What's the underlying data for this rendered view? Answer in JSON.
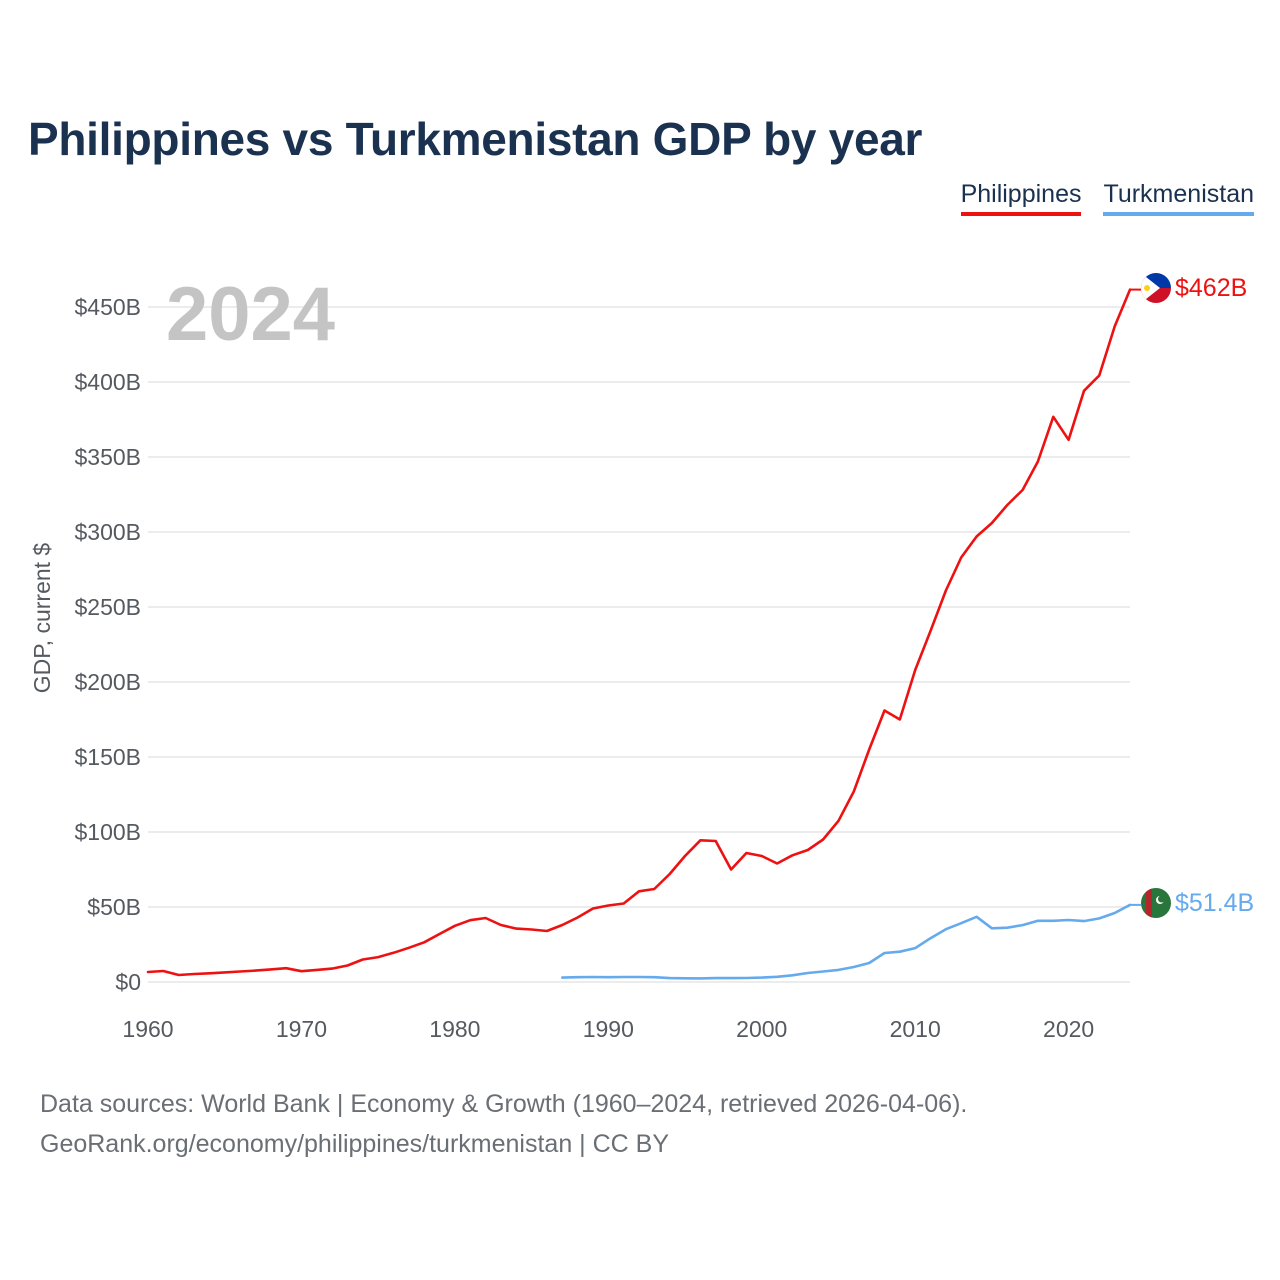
{
  "title": "Philippines vs Turkmenistan GDP by year",
  "legend": [
    {
      "name": "Philippines",
      "color": "#ee1111"
    },
    {
      "name": "Turkmenistan",
      "color": "#66aaee"
    }
  ],
  "current_year": "2024",
  "footer": {
    "line1": "Data sources: World Bank | Economy & Growth (1960–2024, retrieved 2026-04-06).",
    "line2": "GeoRank.org/economy/philippines/turkmenistan | CC BY"
  },
  "chart_data": {
    "type": "line",
    "title": "Philippines vs Turkmenistan GDP by year",
    "xlabel": "",
    "ylabel": "GDP, current $",
    "xlim": [
      1960,
      2024
    ],
    "ylim": [
      0,
      450
    ],
    "y_unit": "billions USD",
    "x_ticks": [
      1960,
      1970,
      1980,
      1990,
      2000,
      2010,
      2020
    ],
    "y_ticks": [
      {
        "value": 0,
        "label": "$0"
      },
      {
        "value": 50,
        "label": "$50B"
      },
      {
        "value": 100,
        "label": "$100B"
      },
      {
        "value": 150,
        "label": "$150B"
      },
      {
        "value": 200,
        "label": "$200B"
      },
      {
        "value": 250,
        "label": "$250B"
      },
      {
        "value": 300,
        "label": "$300B"
      },
      {
        "value": 350,
        "label": "$350B"
      },
      {
        "value": 400,
        "label": "$400B"
      },
      {
        "value": 450,
        "label": "$450B"
      }
    ],
    "grid": true,
    "legend_position": "top-right",
    "series": [
      {
        "name": "Philippines",
        "color": "#ee1111",
        "end_label": "$462B",
        "x": [
          1960,
          1961,
          1962,
          1963,
          1964,
          1965,
          1966,
          1967,
          1968,
          1969,
          1970,
          1971,
          1972,
          1973,
          1974,
          1975,
          1976,
          1977,
          1978,
          1979,
          1980,
          1981,
          1982,
          1983,
          1984,
          1985,
          1986,
          1987,
          1988,
          1989,
          1990,
          1991,
          1992,
          1993,
          1994,
          1995,
          1996,
          1997,
          1998,
          1999,
          2000,
          2001,
          2002,
          2003,
          2004,
          2005,
          2006,
          2007,
          2008,
          2009,
          2010,
          2011,
          2012,
          2013,
          2014,
          2015,
          2016,
          2017,
          2018,
          2019,
          2020,
          2021,
          2022,
          2023,
          2024
        ],
        "values": [
          6.7,
          7.3,
          4.7,
          5.3,
          5.8,
          6.4,
          7.0,
          7.6,
          8.4,
          9.2,
          7.2,
          8.1,
          8.9,
          11.0,
          15.0,
          16.6,
          19.5,
          22.8,
          26.5,
          32.0,
          37.5,
          41.2,
          42.7,
          38.0,
          35.6,
          35.0,
          34.0,
          38.0,
          43.0,
          49.0,
          51.0,
          52.3,
          60.5,
          62.0,
          72.0,
          84.0,
          94.5,
          94.0,
          75.0,
          86.0,
          84.0,
          79.0,
          84.5,
          88.0,
          95.0,
          107.5,
          127.0,
          155.0,
          181.0,
          175.0,
          208.0,
          234.0,
          261.0,
          283.0,
          297.0,
          306.0,
          318.0,
          328.0,
          347.0,
          376.8,
          361.5,
          394.1,
          404.4,
          437.1,
          461.6
        ]
      },
      {
        "name": "Turkmenistan",
        "color": "#66aaee",
        "end_label": "$51.4B",
        "x": [
          1987,
          1988,
          1989,
          1990,
          1991,
          1992,
          1993,
          1994,
          1995,
          1996,
          1997,
          1998,
          1999,
          2000,
          2001,
          2002,
          2003,
          2004,
          2005,
          2006,
          2007,
          2008,
          2009,
          2010,
          2011,
          2012,
          2013,
          2014,
          2015,
          2016,
          2017,
          2018,
          2019,
          2020,
          2021,
          2022,
          2023,
          2024
        ],
        "values": [
          2.9,
          3.2,
          3.3,
          3.2,
          3.3,
          3.3,
          3.2,
          2.6,
          2.5,
          2.4,
          2.6,
          2.6,
          2.7,
          2.9,
          3.5,
          4.5,
          6.0,
          7.0,
          8.1,
          10.0,
          12.7,
          19.3,
          20.2,
          22.6,
          29.2,
          35.2,
          39.2,
          43.5,
          35.8,
          36.2,
          37.9,
          40.8,
          40.8,
          41.3,
          40.6,
          42.4,
          46.0,
          51.4
        ]
      }
    ]
  }
}
